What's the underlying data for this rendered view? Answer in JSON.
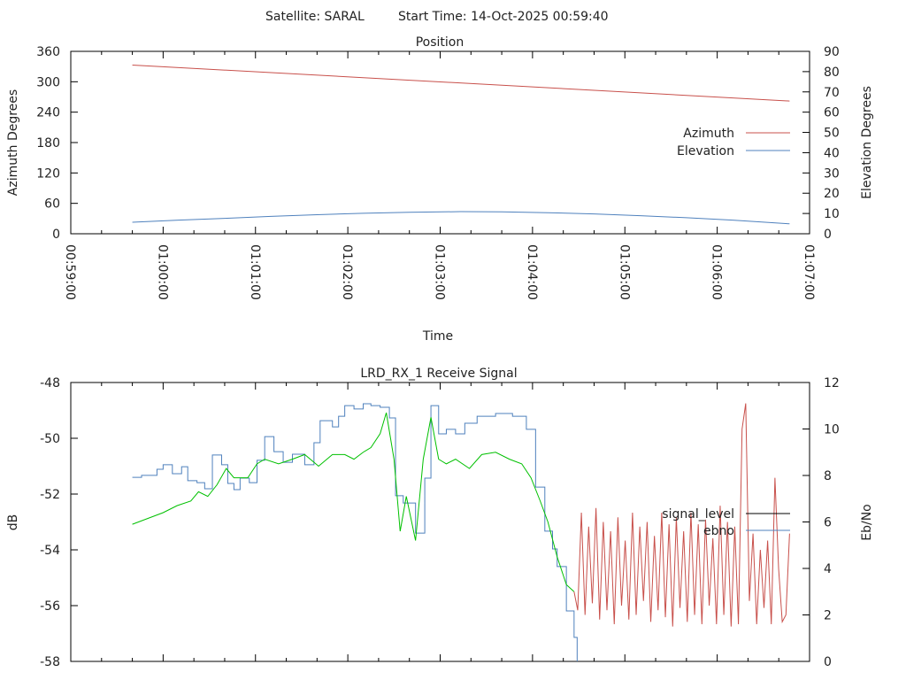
{
  "header": {
    "satellite": "Satellite: SARAL",
    "start_time": "Start Time: 14-Oct-2025 00:59:40"
  },
  "colors": {
    "red": "#c8504b",
    "blue": "#4f81bd",
    "green": "#00c000",
    "black": "#000000"
  },
  "chart_data": [
    {
      "type": "line",
      "title": "Position",
      "xlabel": "Time",
      "ylabel": "Azimuth Degrees",
      "y2label": "Elevation Degrees",
      "x_unit": "seconds after 00:59:00",
      "xlim": [
        0,
        480
      ],
      "ylim": [
        0,
        360
      ],
      "y2lim": [
        0,
        90
      ],
      "x_ticks": [
        "00:59:00",
        "01:00:00",
        "01:01:00",
        "01:02:00",
        "01:03:00",
        "01:04:00",
        "01:05:00",
        "01:06:00",
        "01:07:00"
      ],
      "y_ticks": [
        "0",
        "60",
        "120",
        "180",
        "240",
        "300",
        "360"
      ],
      "y2_ticks": [
        "0",
        "10",
        "20",
        "30",
        "40",
        "50",
        "60",
        "70",
        "80",
        "90"
      ],
      "legend_position": "right",
      "series": [
        {
          "name": "Azimuth",
          "axis": "y",
          "color": "red",
          "t": [
            40,
            467
          ],
          "values": [
            333,
            262
          ]
        },
        {
          "name": "Elevation",
          "axis": "y2",
          "color": "blue",
          "t": [
            40,
            70,
            100,
            130,
            160,
            190,
            220,
            253,
            280,
            310,
            340,
            370,
            400,
            430,
            467
          ],
          "values": [
            5.7,
            6.7,
            7.6,
            8.6,
            9.4,
            10.1,
            10.6,
            10.9,
            10.8,
            10.4,
            9.8,
            8.9,
            7.9,
            6.7,
            4.9
          ]
        }
      ]
    },
    {
      "type": "line",
      "title": "LRD_RX_1 Receive Signal",
      "ylabel": "dB",
      "y2label": "Eb/No",
      "x_unit": "seconds after 00:59:00",
      "xlim": [
        0,
        480
      ],
      "ylim": [
        -58,
        -48
      ],
      "y2lim": [
        0,
        12
      ],
      "y_ticks": [
        "-58",
        "-56",
        "-54",
        "-52",
        "-50",
        "-48"
      ],
      "y2_ticks": [
        "0",
        "2",
        "4",
        "6",
        "8",
        "10",
        "12"
      ],
      "legend": [
        {
          "name": "signal_level",
          "color": "black"
        },
        {
          "name": "ebno",
          "color": "blue"
        }
      ],
      "legend_position": "right",
      "series": [
        {
          "name": "signal_level",
          "axis": "y",
          "color": "blue",
          "step": true,
          "t": [
            40,
            46,
            56,
            60,
            66,
            72,
            76,
            82,
            87,
            92,
            98,
            102,
            106,
            110,
            116,
            121,
            126,
            132,
            138,
            144,
            152,
            158,
            162,
            170,
            174,
            178,
            184,
            190,
            195,
            201,
            207,
            211,
            216,
            224,
            230,
            234,
            239,
            244,
            250,
            256,
            264,
            276,
            287,
            296,
            302,
            308,
            313,
            316,
            322,
            327,
            329
          ],
          "values": [
            -51.4,
            -51.33,
            -51.11,
            -50.95,
            -51.27,
            -51.02,
            -51.52,
            -51.59,
            -51.81,
            -50.6,
            -50.95,
            -51.62,
            -51.84,
            -51.43,
            -51.59,
            -50.79,
            -49.94,
            -50.48,
            -50.86,
            -50.57,
            -50.95,
            -50.16,
            -49.37,
            -49.59,
            -49.21,
            -48.83,
            -48.95,
            -48.76,
            -48.83,
            -48.89,
            -49.27,
            -52.06,
            -52.32,
            -53.4,
            -51.43,
            -48.83,
            -49.84,
            -49.68,
            -49.84,
            -49.46,
            -49.21,
            -49.11,
            -49.21,
            -49.68,
            -51.75,
            -53.33,
            -53.97,
            -54.6,
            -56.19,
            -57.14,
            -58.0
          ]
        },
        {
          "name": "ebno (locked)",
          "axis": "y2",
          "color": "green",
          "t": [
            40,
            52,
            60,
            69,
            78,
            83,
            89,
            95,
            101,
            106,
            115,
            121,
            126,
            135,
            144,
            152,
            161,
            170,
            178,
            184,
            190,
            195,
            201,
            205,
            210,
            214,
            218,
            224,
            229,
            234,
            239,
            244,
            250,
            259,
            267,
            276,
            285,
            293,
            299,
            305,
            310,
            316,
            322,
            327
          ],
          "values": [
            5.9,
            6.2,
            6.4,
            6.7,
            6.9,
            7.3,
            7.1,
            7.6,
            8.3,
            7.9,
            7.9,
            8.5,
            8.7,
            8.5,
            8.7,
            8.9,
            8.4,
            8.9,
            8.9,
            8.7,
            9.0,
            9.2,
            9.8,
            10.7,
            8.7,
            5.6,
            7.1,
            5.2,
            8.7,
            10.5,
            8.7,
            8.5,
            8.7,
            8.3,
            8.9,
            9.0,
            8.7,
            8.5,
            7.9,
            6.9,
            6.0,
            4.5,
            3.3,
            3.0
          ]
        },
        {
          "name": "ebno (unlocked)",
          "axis": "y2",
          "color": "red",
          "t_start": 327,
          "t_end": 467,
          "values": [
            3.0,
            2.2,
            6.4,
            2.0,
            5.8,
            2.5,
            6.6,
            1.8,
            6.0,
            2.2,
            5.6,
            1.6,
            6.2,
            2.4,
            5.2,
            1.8,
            6.4,
            2.0,
            5.8,
            2.6,
            6.0,
            1.7,
            5.4,
            2.2,
            6.4,
            1.9,
            5.9,
            1.5,
            6.2,
            2.3,
            5.6,
            1.7,
            6.4,
            2.0,
            5.9,
            1.6,
            6.1,
            2.4,
            5.3,
            1.6,
            6.7,
            2.0,
            6.0,
            1.5,
            5.8,
            1.6,
            10.0,
            11.1,
            2.6,
            5.5,
            1.6,
            4.8,
            2.3,
            5.2,
            1.6,
            7.9,
            4.0,
            1.7,
            2.0,
            5.5
          ]
        }
      ]
    }
  ]
}
